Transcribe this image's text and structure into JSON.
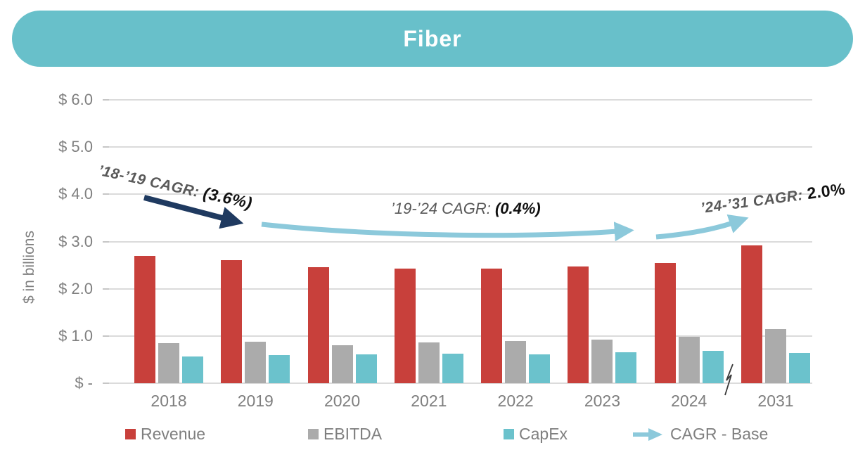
{
  "header": {
    "title": "Fiber"
  },
  "colors": {
    "banner": "#68C0CA",
    "revenue": "#C8403B",
    "ebitda": "#ABABAB",
    "capex": "#6BC2CC",
    "navy_arrow": "#1F3A60",
    "light_arrow": "#8CC9DB",
    "axis_text": "#7F7F7F",
    "gridline": "#DBDBDB",
    "tickmark": "#C6C6C6"
  },
  "y_axis": {
    "title": "$ in billions",
    "ticks": [
      {
        "label": "$ 6.0",
        "value": 6
      },
      {
        "label": "$ 5.0",
        "value": 5
      },
      {
        "label": "$ 4.0",
        "value": 4
      },
      {
        "label": "$ 3.0",
        "value": 3
      },
      {
        "label": "$ 2.0",
        "value": 2
      },
      {
        "label": "$ 1.0",
        "value": 1
      },
      {
        "label": "$  -",
        "value": 0
      }
    ]
  },
  "chart_data": {
    "type": "bar",
    "title": "Fiber",
    "xlabel": "",
    "ylabel": "$ in billions",
    "ylim": [
      0,
      6
    ],
    "gridlines": true,
    "legend_position": "bottom",
    "categories": [
      "2018",
      "2019",
      "2020",
      "2021",
      "2022",
      "2023",
      "2024",
      "2031"
    ],
    "axis_break_between": [
      "2024",
      "2031"
    ],
    "series": [
      {
        "name": "Revenue",
        "color": "#C8403B",
        "values": [
          2.7,
          2.6,
          2.45,
          2.43,
          2.43,
          2.47,
          2.55,
          2.92
        ]
      },
      {
        "name": "EBITDA",
        "color": "#ABABAB",
        "values": [
          0.85,
          0.88,
          0.8,
          0.86,
          0.89,
          0.93,
          0.99,
          1.14
        ]
      },
      {
        "name": "CapEx",
        "color": "#6BC2CC",
        "values": [
          0.57,
          0.59,
          0.61,
          0.62,
          0.61,
          0.65,
          0.68,
          0.64
        ]
      }
    ],
    "annotations": [
      {
        "label": "’18-’19 CAGR: ",
        "value": "(3.6%)"
      },
      {
        "label": "’19-’24 CAGR: ",
        "value": "(0.4%)"
      },
      {
        "label": "’24-’31 CAGR: ",
        "value": "2.0%"
      }
    ]
  },
  "legend": {
    "items": [
      {
        "label": "Revenue",
        "swatch": "#C8403B"
      },
      {
        "label": "EBITDA",
        "swatch": "#ABABAB"
      },
      {
        "label": "CapEx",
        "swatch": "#6BC2CC"
      },
      {
        "label": "CAGR - Base",
        "icon": "cagr-arrow-icon",
        "color": "#8CC9DB"
      }
    ]
  }
}
